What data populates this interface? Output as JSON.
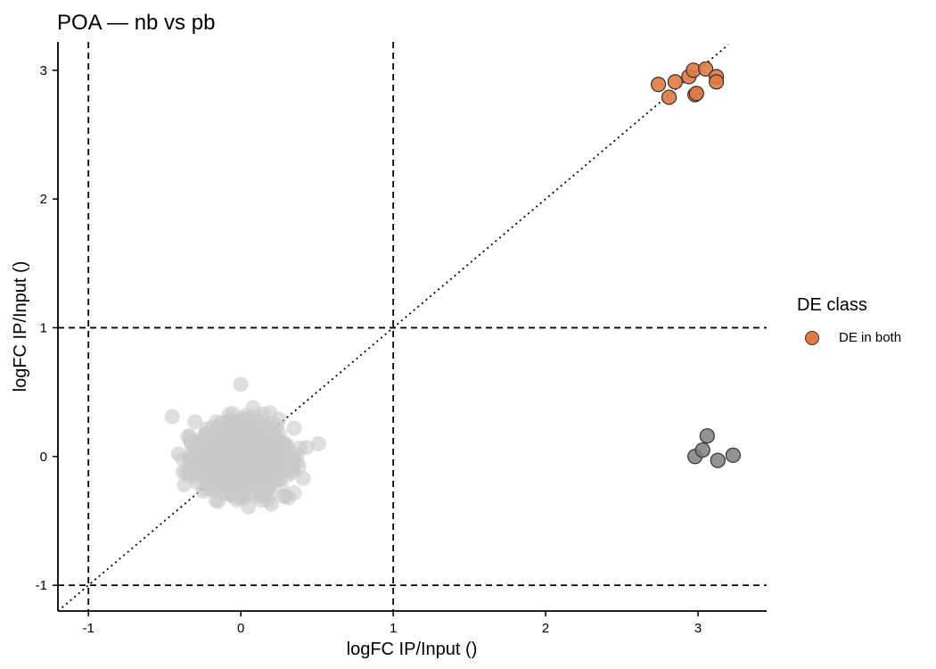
{
  "title": "POA — nb vs pb",
  "legend": {
    "title": "DE class",
    "items": [
      {
        "label": "DE in both",
        "color": "#E07A45"
      }
    ]
  },
  "chart_data": {
    "type": "scatter",
    "title": "POA — nb vs pb",
    "xlabel": "logFC IP/Input ()",
    "ylabel": "logFC IP/Input ()",
    "xlim": [
      -1.2,
      3.45
    ],
    "ylim": [
      -1.2,
      3.22
    ],
    "xticks": [
      -1,
      0,
      1,
      2,
      3
    ],
    "yticks": [
      -1,
      0,
      1,
      2,
      3
    ],
    "grid": false,
    "legend_position": "right",
    "reference_lines": {
      "vertical_dashed": [
        -1,
        1
      ],
      "horizontal_dashed": [
        -1,
        1
      ],
      "diagonal_dotted": "y = x"
    },
    "series": [
      {
        "name": "DE in both",
        "color": "#E07A45",
        "points": [
          [
            2.74,
            2.89
          ],
          [
            2.81,
            2.79
          ],
          [
            2.85,
            2.91
          ],
          [
            2.94,
            2.95
          ],
          [
            2.97,
            3.0
          ],
          [
            2.98,
            2.81
          ],
          [
            3.05,
            3.01
          ],
          [
            3.12,
            2.95
          ],
          [
            3.12,
            2.91
          ],
          [
            2.99,
            2.82
          ]
        ]
      },
      {
        "color": "#808080",
        "points": [
          [
            2.98,
            0.0
          ],
          [
            3.03,
            0.05
          ],
          [
            3.06,
            0.16
          ],
          [
            3.13,
            -0.03
          ],
          [
            3.23,
            0.01
          ]
        ]
      },
      {
        "color": "#C8C8C8",
        "points": [
          [
            -0.45,
            0.31
          ],
          [
            0.0,
            0.56
          ],
          [
            0.51,
            0.1
          ],
          [
            0.43,
            0.07
          ],
          [
            0.25,
            0.29
          ],
          [
            0.28,
            -0.31
          ],
          [
            0.05,
            -0.39
          ],
          [
            -0.15,
            -0.35
          ],
          [
            -0.37,
            -0.22
          ],
          [
            0.41,
            -0.17
          ],
          [
            -0.41,
            0.02
          ],
          [
            0.08,
            0.38
          ],
          [
            -0.3,
            0.27
          ],
          [
            0.2,
            -0.37
          ],
          [
            -0.25,
            -0.27
          ],
          [
            0.35,
            0.22
          ],
          [
            0.38,
            -0.08
          ],
          [
            -0.38,
            -0.12
          ],
          [
            -0.33,
            0.12
          ],
          [
            0.15,
            0.33
          ]
        ]
      }
    ]
  }
}
